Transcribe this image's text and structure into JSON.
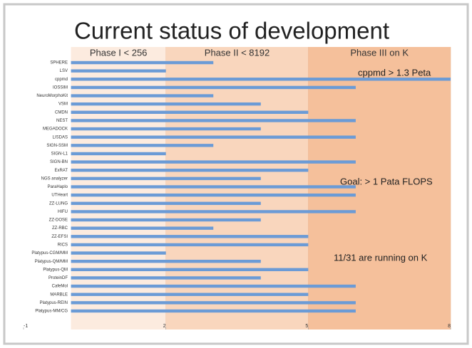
{
  "chart_data": {
    "type": "bar",
    "orientation": "horizontal",
    "title": "Current status of development",
    "categories": [
      "SPHERE",
      "LSV",
      "cppmd",
      "IOSSIM",
      "NeuroMorphoKit",
      "VSM",
      "CMDN",
      "NEST",
      "MEGADOCK",
      "LISDAS",
      "SIGN-SSM",
      "SIGN-L1",
      "SIGN-BN",
      "ExRAT",
      "NGS analyzer",
      "ParaHaplo",
      "UTHeart",
      "ZZ-LUNG",
      "HIFU",
      "ZZ-DOSE",
      "ZZ-RBC",
      "ZZ-EFSI",
      "RICS",
      "Platypus-CGM/MM",
      "Platypus-QM/MM",
      "Platypus-QM",
      "ProteinDF",
      "CafeMol",
      "MARBLE",
      "Platypus-REIN",
      "Platypus-MM/CG"
    ],
    "values": [
      3,
      2,
      8,
      6,
      3,
      4,
      5,
      6,
      4,
      6,
      3,
      2,
      6,
      5,
      4,
      6,
      6,
      4,
      6,
      4,
      3,
      5,
      5,
      2,
      4,
      5,
      4,
      6,
      5,
      6,
      6
    ],
    "color": "#6b9bd6",
    "xlim": [
      -1,
      8
    ],
    "xticks": [
      -1,
      2,
      5,
      8
    ],
    "phases": [
      {
        "label": "Phase I < 256",
        "start": 0,
        "end": 2,
        "color": "#fcebdf"
      },
      {
        "label": "Phase II < 8192",
        "start": 2,
        "end": 5,
        "color": "#f9d6bd"
      },
      {
        "label": "Phase III on K",
        "start": 5,
        "end": 8,
        "color": "#f5c09b"
      }
    ],
    "annotations": [
      "cppmd > 1.3 Peta",
      "Goal: > 1 Pata FLOPS",
      "11/31 are running on K"
    ]
  }
}
